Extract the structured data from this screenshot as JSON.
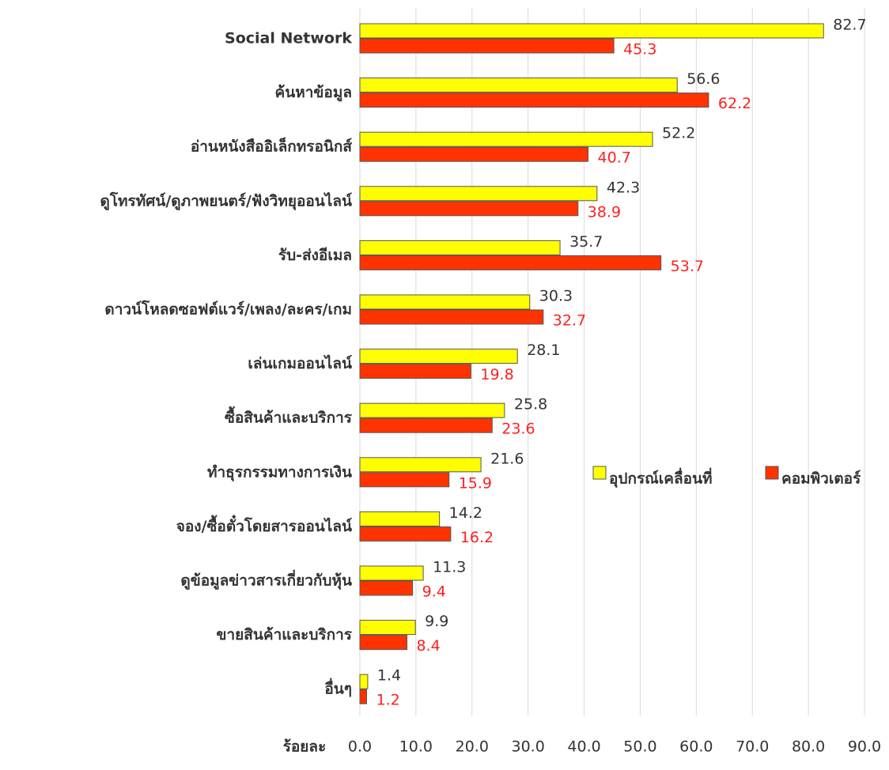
{
  "chart_data": {
    "type": "bar",
    "orientation": "horizontal",
    "categories": [
      "Social Network",
      "ค้นหาข้อมูล",
      "อ่านหนังสืออิเล็กทรอนิกส์",
      "ดูโทรทัศน์/ดูภาพยนตร์/ฟังวิทยุออนไลน์",
      "รับ-ส่งอีเมล",
      "ดาวน์โหลดซอฟต์แวร์/เพลง/ละคร/เกม",
      "เล่นเกมออนไลน์",
      "ซื้อสินค้าและบริการ",
      "ทำธุรกรรมทางการเงิน",
      "จอง/ซื้อตั๋วโดยสารออนไลน์",
      "ดูข้อมูลข่าวสารเกี่ยวกับหุ้น",
      "ขายสินค้าและบริการ",
      "อื่นๆ"
    ],
    "series": [
      {
        "name": "อุปกรณ์เคลื่อนที่",
        "color": "#ffff00",
        "label_color": "#333333",
        "values": [
          82.7,
          56.6,
          52.2,
          42.3,
          35.7,
          30.3,
          28.1,
          25.8,
          21.6,
          14.2,
          11.3,
          9.9,
          1.4
        ]
      },
      {
        "name": "คอมพิวเตอร์",
        "color": "#ff3300",
        "label_color": "#ff2020",
        "values": [
          45.3,
          62.2,
          40.7,
          38.9,
          53.7,
          32.7,
          19.8,
          23.6,
          15.9,
          16.2,
          9.4,
          8.4,
          1.2
        ]
      }
    ],
    "x_label": "ร้อยละ",
    "xlim": [
      0,
      90
    ],
    "xticks": [
      {
        "value": 0,
        "label": "0.0"
      },
      {
        "value": 10,
        "label": "10.0"
      },
      {
        "value": 20,
        "label": "20.0"
      },
      {
        "value": 30,
        "label": "30.0"
      },
      {
        "value": 40,
        "label": "40.0"
      },
      {
        "value": 50,
        "label": "50.0"
      },
      {
        "value": 60,
        "label": "60.0"
      },
      {
        "value": 70,
        "label": "70.0"
      },
      {
        "value": 80,
        "label": "80.0"
      },
      {
        "value": 90,
        "label": "90.0"
      }
    ],
    "grid": true
  }
}
